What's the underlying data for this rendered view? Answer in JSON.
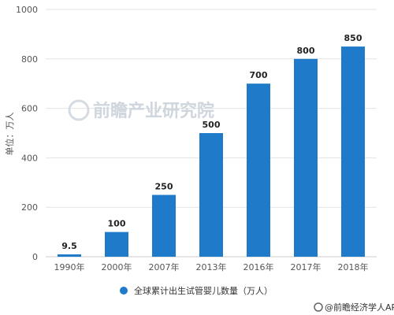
{
  "chart_data": {
    "type": "bar",
    "categories": [
      "1990年",
      "2000年",
      "2007年",
      "2013年",
      "2016年",
      "2017年",
      "2018年"
    ],
    "values": [
      9.5,
      100,
      250,
      500,
      700,
      800,
      850
    ],
    "data_labels": [
      "9.5",
      "100",
      "250",
      "500",
      "700",
      "800",
      "850"
    ],
    "yticks": [
      0,
      200,
      400,
      600,
      800,
      1000
    ],
    "ylim": [
      0,
      1000
    ],
    "ylabel": "单位：万人",
    "xlabel": "",
    "title": "",
    "grid": true,
    "legend": {
      "placement": "bottom",
      "entries": [
        {
          "label": "全球累计出生试管婴儿数量（万人）",
          "color": "#1f7ac9"
        }
      ]
    },
    "bar_color": "#1f7ac9"
  },
  "watermark": {
    "text": "前瞻产业研究院"
  },
  "source": {
    "text": "@前瞻经济学人APP"
  }
}
